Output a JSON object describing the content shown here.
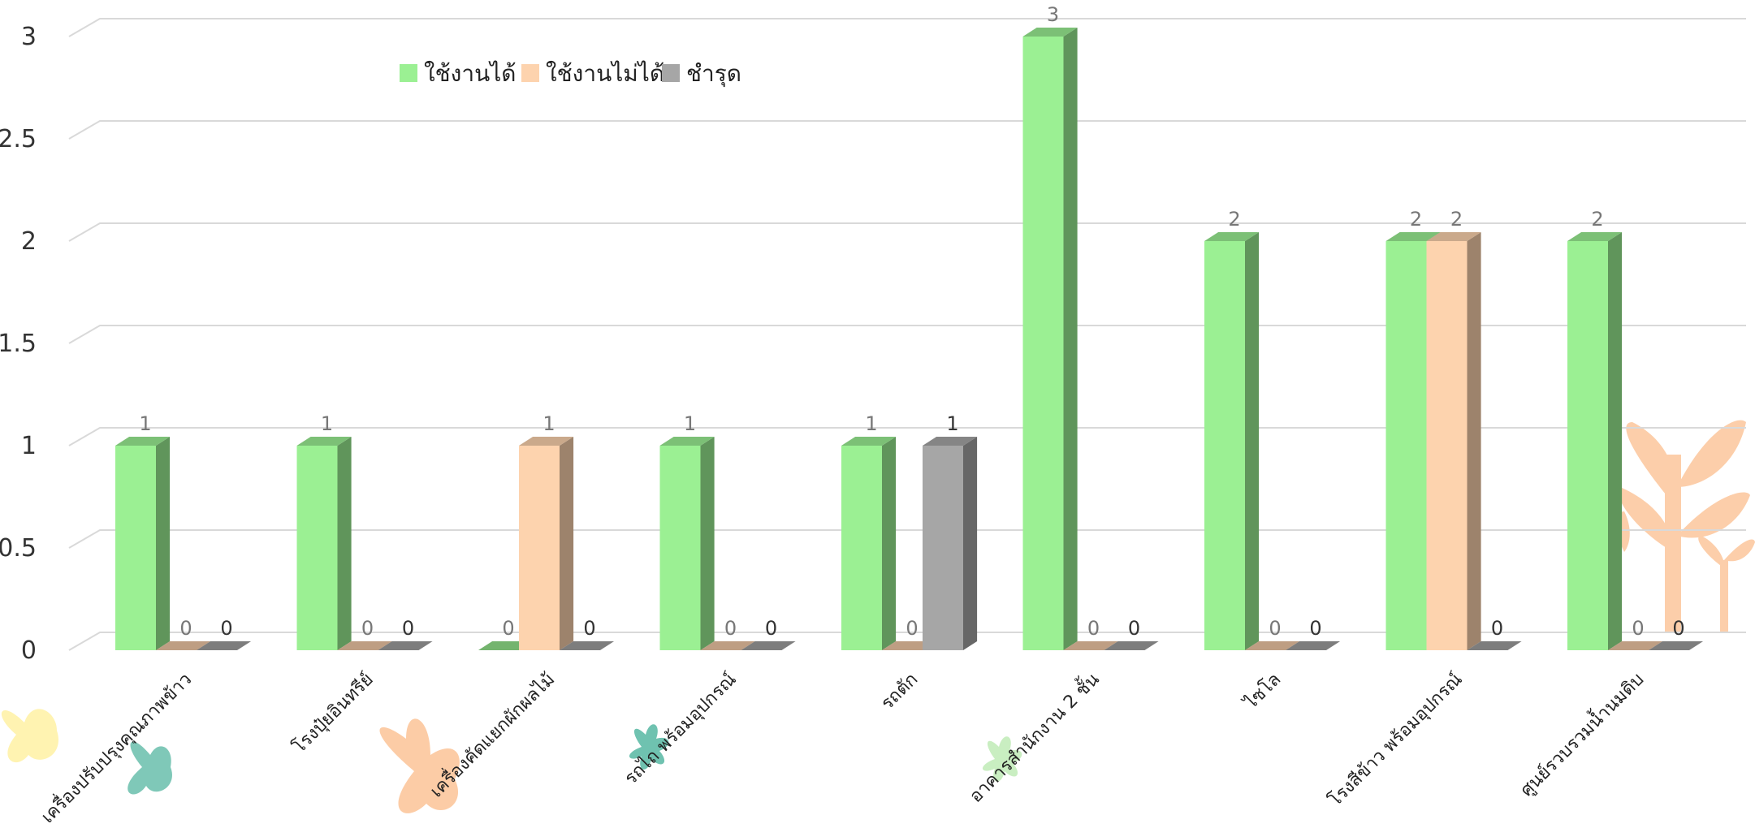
{
  "chart_data": {
    "type": "bar",
    "categories": [
      "เครื่องปรับปรุงคุณภาพข้าว",
      "โรงปุ๋ยอินทรีย์",
      "เครื่องคัดแยกผักผลไม้",
      "รถไถ พร้อมอุปกรณ์",
      "รถตัก",
      "อาคารสำนักงาน 2 ชั้น",
      "ไซโล",
      "โรงสีข้าว พร้อมอุปกรณ์",
      "ศูนย์รวบรวมน้ำนมดิบ"
    ],
    "series": [
      {
        "name": "ใช้งานได้",
        "color": "#9bf093",
        "values": [
          1,
          1,
          0,
          1,
          1,
          3,
          2,
          2,
          2
        ]
      },
      {
        "name": "ใช้งานไม่ได้",
        "color": "#fdd3ae",
        "values": [
          0,
          0,
          1,
          0,
          0,
          0,
          0,
          2,
          0
        ]
      },
      {
        "name": "ชำรุด",
        "color": "#a6a6a6",
        "values": [
          0,
          0,
          0,
          0,
          1,
          0,
          0,
          0,
          0
        ]
      }
    ],
    "yticks": [
      "0",
      "0.5",
      "1",
      "1.5",
      "2",
      "2.5",
      "3"
    ],
    "ylim": [
      0,
      3
    ],
    "grid": true,
    "legend": "top-left",
    "data_labels": true
  }
}
